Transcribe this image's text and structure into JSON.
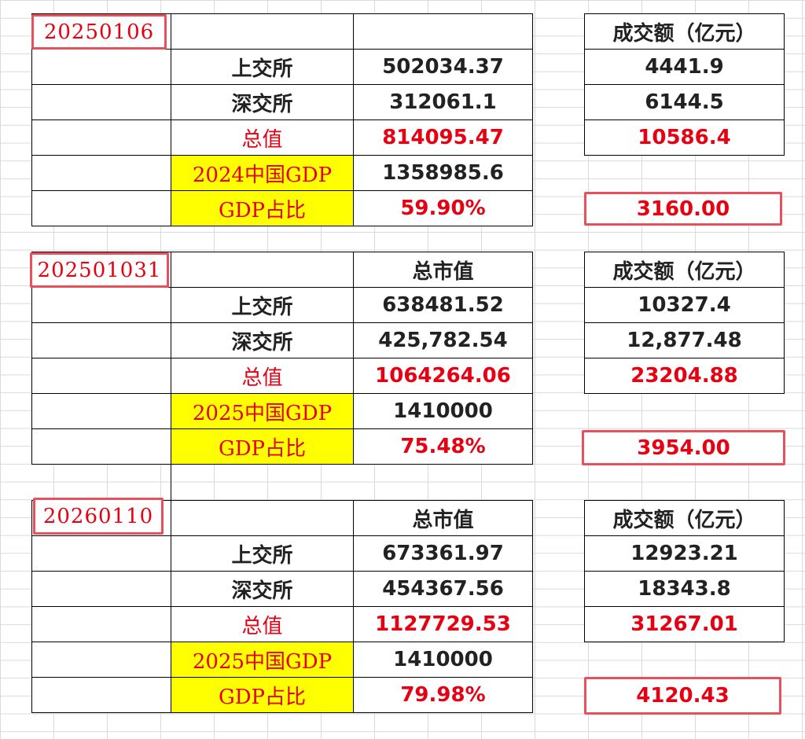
{
  "blocks": [
    {
      "date": "20250106",
      "col_mcap_header": "",
      "col_turnover_header": "成交额（亿元）",
      "rows": [
        {
          "label": "上交所",
          "mcap": "502034.37",
          "turnover": "4441.9"
        },
        {
          "label": "深交所",
          "mcap": "312061.1",
          "turnover": "6144.5"
        },
        {
          "label": "总值",
          "mcap": "814095.47",
          "turnover": "10586.4"
        }
      ],
      "gdp_label": "2024中国GDP",
      "gdp_value": "1358985.6",
      "ratio_label": "GDP占比",
      "ratio_value": "59.90%",
      "result": "3160.00"
    },
    {
      "date": "202501031",
      "col_mcap_header": "总市值",
      "col_turnover_header": "成交额（亿元）",
      "rows": [
        {
          "label": "上交所",
          "mcap": "638481.52",
          "turnover": "10327.4"
        },
        {
          "label": "深交所",
          "mcap": "425,782.54",
          "turnover": "12,877.48"
        },
        {
          "label": "总值",
          "mcap": "1064264.06",
          "turnover": "23204.88"
        }
      ],
      "gdp_label": "2025中国GDP",
      "gdp_value": "1410000",
      "ratio_label": "GDP占比",
      "ratio_value": "75.48%",
      "result": "3954.00"
    },
    {
      "date": "20260110",
      "col_mcap_header": "总市值",
      "col_turnover_header": "成交额（亿元）",
      "rows": [
        {
          "label": "上交所",
          "mcap": "673361.97",
          "turnover": "12923.21"
        },
        {
          "label": "深交所",
          "mcap": "454367.56",
          "turnover": "18343.8"
        },
        {
          "label": "总值",
          "mcap": "1127729.53",
          "turnover": "31267.01"
        }
      ],
      "gdp_label": "2025中国GDP",
      "gdp_value": "1410000",
      "ratio_label": "GDP占比",
      "ratio_value": "79.98%",
      "result": "4120.43"
    }
  ]
}
